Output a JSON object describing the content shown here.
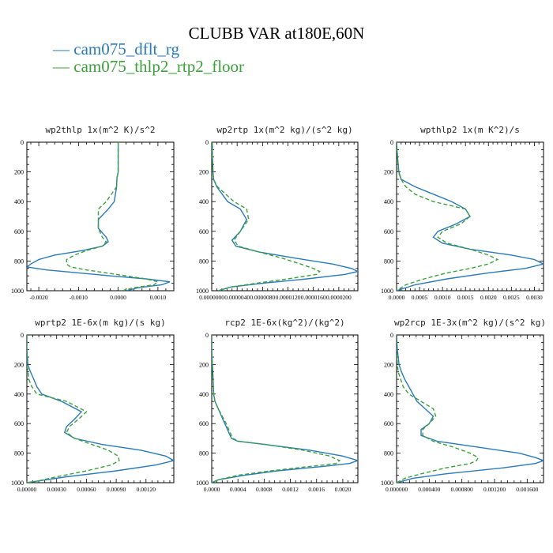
{
  "title": "CLUBB VAR at180E,60N",
  "legend": [
    {
      "label": "cam075_dflt_rg",
      "color": "#2a7ab8",
      "dash": "solid"
    },
    {
      "label": "cam075_thlp2_rtp2_floor",
      "color": "#3aa23a",
      "dash": "dashed"
    }
  ],
  "chart_data": [
    {
      "type": "line",
      "title": "wp2thlp  1x(m^2 K)/s^2",
      "xlim": [
        -0.0023,
        0.0014
      ],
      "ylim": [
        0,
        1000
      ],
      "y_inverted": true,
      "xticks": [
        "-0.0020",
        "-0.0010",
        "0.0000",
        "0.0010"
      ],
      "xtick_values": [
        -0.002,
        -0.001,
        0.0,
        0.001
      ],
      "yticks": [
        "0",
        "200",
        "400",
        "600",
        "800",
        "1000"
      ],
      "series": [
        {
          "name": "cam075_dflt_rg",
          "y": [
            0,
            100,
            200,
            240,
            300,
            400,
            450,
            520,
            580,
            640,
            670,
            700,
            730,
            760,
            790,
            820,
            840,
            860,
            880,
            900,
            920,
            940,
            960,
            980,
            1000
          ],
          "x": [
            0.0,
            0.0,
            0.0,
            -3e-05,
            -4e-05,
            -0.0001,
            -0.00025,
            -0.0005,
            -0.0005,
            -0.0003,
            -0.00025,
            -0.0004,
            -0.0009,
            -0.0016,
            -0.002,
            -0.0022,
            -0.0023,
            -0.0018,
            -0.001,
            -0.0002,
            0.0007,
            0.0013,
            0.0011,
            0.0005,
            0.0002
          ]
        },
        {
          "name": "cam075_thlp2_rtp2_floor",
          "y": [
            0,
            100,
            200,
            240,
            300,
            400,
            450,
            520,
            580,
            640,
            670,
            700,
            730,
            760,
            790,
            820,
            840,
            860,
            880,
            900,
            920,
            940,
            960,
            980,
            1000
          ],
          "x": [
            0.0,
            0.0,
            0.0,
            -3e-05,
            -4e-05,
            -0.0003,
            -0.0005,
            -0.0005,
            -0.0005,
            -0.0004,
            -0.0003,
            -0.0004,
            -0.0008,
            -0.0011,
            -0.0013,
            -0.0013,
            -0.0012,
            -0.0008,
            -0.0003,
            0.0002,
            0.0007,
            0.001,
            0.0009,
            0.0004,
            0.0001
          ]
        }
      ]
    },
    {
      "type": "line",
      "title": "wp2rtp  1x(m^2 kg)/(s^2 kg)",
      "xlim": [
        0.0,
        2.3e-05
      ],
      "ylim": [
        0,
        1000
      ],
      "y_inverted": true,
      "xticks": [
        "0.0000000",
        "0.0000040",
        "0.0000080",
        "0.0000120",
        "0.0000160",
        "0.0000200"
      ],
      "xtick_values": [
        0.0,
        4e-06,
        8e-06,
        1.2e-05,
        1.6e-05,
        2e-05
      ],
      "yticks": [
        "0",
        "200",
        "400",
        "600",
        "800",
        "1000"
      ],
      "series": [
        {
          "name": "cam075_dflt_rg",
          "y": [
            0,
            100,
            200,
            250,
            300,
            400,
            450,
            520,
            600,
            660,
            700,
            740,
            780,
            820,
            850,
            870,
            890,
            920,
            950,
            975,
            1000
          ],
          "x": [
            1e-07,
            1e-07,
            2e-07,
            3e-07,
            8e-07,
            2.5e-06,
            4.5e-06,
            5.5e-06,
            4.5e-06,
            3.2e-06,
            3.8e-06,
            7.5e-06,
            1.3e-05,
            1.9e-05,
            2.2e-05,
            2.3e-05,
            2.1e-05,
            1.5e-05,
            8e-06,
            3e-06,
            1e-06
          ]
        },
        {
          "name": "cam075_thlp2_rtp2_floor",
          "y": [
            0,
            100,
            200,
            250,
            300,
            400,
            450,
            520,
            600,
            660,
            700,
            740,
            780,
            820,
            850,
            870,
            890,
            920,
            950,
            975,
            1000
          ],
          "x": [
            1e-07,
            1e-07,
            2e-07,
            3e-07,
            9e-07,
            3.5e-06,
            5.5e-06,
            5.8e-06,
            4.5e-06,
            3.5e-06,
            4.2e-06,
            7.5e-06,
            1.1e-05,
            1.4e-05,
            1.6e-05,
            1.7e-05,
            1.65e-05,
            1.2e-05,
            7e-06,
            3e-06,
            1e-06
          ]
        }
      ]
    },
    {
      "type": "line",
      "title": "wpthlp2  1x(m K^2)/s",
      "xlim": [
        0.0,
        0.0032
      ],
      "ylim": [
        0,
        1000
      ],
      "y_inverted": true,
      "xticks": [
        "0.0000",
        "0.0005",
        "0.0010",
        "0.0015",
        "0.0020",
        "0.0025",
        "0.0030"
      ],
      "xtick_values": [
        0.0,
        0.0005,
        0.001,
        0.0015,
        0.002,
        0.0025,
        0.003
      ],
      "yticks": [
        "0",
        "200",
        "400",
        "600",
        "800",
        "1000"
      ],
      "series": [
        {
          "name": "cam075_dflt_rg",
          "y": [
            0,
            100,
            200,
            250,
            300,
            350,
            400,
            450,
            500,
            550,
            600,
            640,
            680,
            720,
            760,
            790,
            820,
            850,
            880,
            920,
            960,
            990,
            1000
          ],
          "x": [
            0.0,
            2e-05,
            5e-05,
            0.0001,
            0.0004,
            0.0008,
            0.0012,
            0.0015,
            0.0016,
            0.0013,
            0.0009,
            0.0008,
            0.001,
            0.0016,
            0.0025,
            0.003,
            0.0032,
            0.0028,
            0.002,
            0.0011,
            0.0004,
            0.0001,
            0.0
          ]
        },
        {
          "name": "cam075_thlp2_rtp2_floor",
          "y": [
            0,
            100,
            200,
            250,
            300,
            350,
            400,
            450,
            500,
            550,
            600,
            640,
            680,
            720,
            760,
            790,
            820,
            850,
            880,
            920,
            960,
            990,
            1000
          ],
          "x": [
            0.0,
            2e-05,
            4e-05,
            0.0001,
            0.0002,
            0.0004,
            0.0008,
            0.0015,
            0.0016,
            0.0014,
            0.001,
            0.0009,
            0.0011,
            0.0016,
            0.002,
            0.0022,
            0.002,
            0.0016,
            0.0011,
            0.0006,
            0.0002,
            5e-05,
            0.0
          ]
        }
      ]
    },
    {
      "type": "line",
      "title": "wprtp2  1E-6x(m kg)/(s kg)",
      "xlim": [
        0.0,
        0.00148
      ],
      "ylim": [
        0,
        1000
      ],
      "y_inverted": true,
      "xticks": [
        "0.00000",
        "0.00030",
        "0.00060",
        "0.00090",
        "0.00120"
      ],
      "xtick_values": [
        0.0,
        0.0003,
        0.0006,
        0.0009,
        0.0012
      ],
      "yticks": [
        "0",
        "200",
        "400",
        "600",
        "800",
        "1000"
      ],
      "series": [
        {
          "name": "cam075_dflt_rg",
          "y": [
            0,
            100,
            200,
            240,
            300,
            350,
            400,
            450,
            520,
            570,
            620,
            660,
            700,
            740,
            780,
            820,
            850,
            880,
            920,
            960,
            990,
            1000
          ],
          "x": [
            0.0,
            0.0,
            1e-05,
            3e-05,
            7e-05,
            0.0001,
            0.00015,
            0.00035,
            0.00055,
            0.00048,
            0.0004,
            0.00038,
            0.00048,
            0.00075,
            0.00115,
            0.0014,
            0.00148,
            0.0013,
            0.0009,
            0.0004,
            0.0001,
            0.0
          ]
        },
        {
          "name": "cam075_thlp2_rtp2_floor",
          "y": [
            0,
            100,
            200,
            240,
            300,
            350,
            400,
            450,
            520,
            570,
            620,
            660,
            700,
            740,
            780,
            820,
            850,
            880,
            920,
            960,
            990,
            1000
          ],
          "x": [
            0.0,
            0.0,
            0.0,
            1e-05,
            2e-05,
            5e-05,
            0.0001,
            0.0004,
            0.0006,
            0.00052,
            0.00043,
            0.0004,
            0.00048,
            0.00065,
            0.00082,
            0.00092,
            0.00093,
            0.00085,
            0.0006,
            0.0003,
            0.0001,
            0.0
          ]
        }
      ]
    },
    {
      "type": "line",
      "title": "rcp2  1E-6x(kg^2)/(kg^2)",
      "xlim": [
        0.0,
        0.00223
      ],
      "ylim": [
        0,
        1000
      ],
      "y_inverted": true,
      "xticks": [
        "0.0000",
        "0.0004",
        "0.0008",
        "0.0012",
        "0.0016",
        "0.0020"
      ],
      "xtick_values": [
        0.0,
        0.0004,
        0.0008,
        0.0012,
        0.0016,
        0.002
      ],
      "yticks": [
        "0",
        "200",
        "400",
        "600",
        "800",
        "1000"
      ],
      "series": [
        {
          "name": "cam075_dflt_rg",
          "y": [
            0,
            100,
            200,
            300,
            400,
            450,
            500,
            550,
            600,
            650,
            700,
            720,
            740,
            780,
            820,
            850,
            870,
            890,
            920,
            950,
            980,
            1000
          ],
          "x": [
            0.0,
            0.0,
            1e-05,
            2e-05,
            3e-05,
            5e-05,
            0.0001,
            0.00015,
            0.0002,
            0.00025,
            0.0003,
            0.0004,
            0.0008,
            0.0015,
            0.002,
            0.00223,
            0.0021,
            0.0017,
            0.001,
            0.0005,
            0.0001,
            0.0
          ]
        },
        {
          "name": "cam075_thlp2_rtp2_floor",
          "y": [
            0,
            100,
            200,
            300,
            400,
            450,
            500,
            550,
            600,
            650,
            700,
            720,
            740,
            780,
            820,
            850,
            870,
            890,
            920,
            950,
            980,
            1000
          ],
          "x": [
            0.0,
            0.0,
            1e-05,
            2e-05,
            3e-05,
            5e-05,
            0.0001,
            0.00016,
            0.00022,
            0.00027,
            0.00032,
            0.00042,
            0.0008,
            0.0014,
            0.0018,
            0.00195,
            0.0019,
            0.0015,
            0.0009,
            0.0004,
            0.0001,
            0.0
          ]
        }
      ]
    },
    {
      "type": "line",
      "title": "wp2rcp  1E-3x(m^2 kg)/(s^2 kg)",
      "xlim": [
        0.0,
        0.0018
      ],
      "ylim": [
        0,
        1000
      ],
      "y_inverted": true,
      "xticks": [
        "0.000000",
        "0.000400",
        "0.000800",
        "0.001200",
        "0.001600"
      ],
      "xtick_values": [
        0.0,
        0.0004,
        0.0008,
        0.0012,
        0.0016
      ],
      "yticks": [
        "0",
        "200",
        "400",
        "600",
        "800",
        "1000"
      ],
      "series": [
        {
          "name": "cam075_dflt_rg",
          "y": [
            0,
            100,
            200,
            250,
            300,
            350,
            400,
            450,
            500,
            550,
            600,
            640,
            680,
            720,
            760,
            800,
            830,
            850,
            870,
            900,
            940,
            970,
            1000
          ],
          "x": [
            0.0,
            1e-05,
            3e-05,
            6e-05,
            0.0001,
            0.00015,
            0.0002,
            0.00025,
            0.00035,
            0.00045,
            0.0004,
            0.0003,
            0.0003,
            0.0005,
            0.001,
            0.0015,
            0.0017,
            0.0018,
            0.0017,
            0.0013,
            0.0006,
            0.0002,
            0.0
          ]
        },
        {
          "name": "cam075_thlp2_rtp2_floor",
          "y": [
            0,
            100,
            200,
            250,
            300,
            350,
            400,
            450,
            500,
            550,
            600,
            640,
            680,
            720,
            760,
            800,
            830,
            850,
            870,
            900,
            940,
            970,
            1000
          ],
          "x": [
            0.0,
            0.0,
            1e-05,
            2e-05,
            5e-05,
            8e-05,
            0.00015,
            0.0003,
            0.00045,
            0.00048,
            0.0004,
            0.00032,
            0.00032,
            0.00045,
            0.0007,
            0.0009,
            0.001,
            0.00098,
            0.0009,
            0.0006,
            0.0003,
            0.0001,
            0.0
          ]
        }
      ]
    }
  ]
}
